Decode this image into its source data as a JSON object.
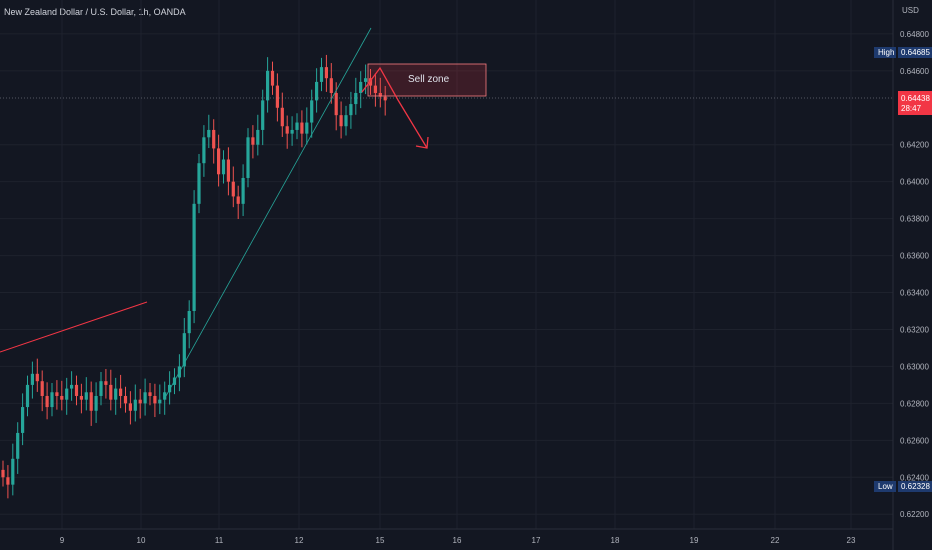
{
  "title": "New Zealand Dollar / U.S. Dollar, 1h, OANDA",
  "currency": "USD",
  "annotations": {
    "sell_zone_label": "Sell zone"
  },
  "badges": {
    "high_label": "High",
    "high_value": "0.64685",
    "low_label": "Low",
    "low_value": "0.62328",
    "current_price": "0.64438",
    "countdown": "28:47"
  },
  "colors": {
    "background": "#131722",
    "up": "#26a69a",
    "down": "#ef5350",
    "badge_blue": "#1e3a6e",
    "current_badge": "#f23645"
  },
  "chart_data": {
    "type": "candlestick",
    "title": "New Zealand Dollar / U.S. Dollar, 1h, OANDA",
    "y_ticks": [
      "0.64800",
      "0.64600",
      "0.64200",
      "0.64000",
      "0.63800",
      "0.63600",
      "0.63400",
      "0.63200",
      "0.63000",
      "0.62800",
      "0.62600",
      "0.62400",
      "0.62200"
    ],
    "x_ticks": [
      "9",
      "10",
      "11",
      "12",
      "15",
      "16",
      "17",
      "18",
      "19",
      "22",
      "23"
    ],
    "ylim": [
      0.6212,
      0.6494
    ],
    "closes": [
      0.624,
      0.6236,
      0.625,
      0.6264,
      0.6278,
      0.629,
      0.6296,
      0.6292,
      0.6284,
      0.6278,
      0.6286,
      0.6284,
      0.6282,
      0.6288,
      0.629,
      0.6284,
      0.6282,
      0.6286,
      0.6276,
      0.6284,
      0.6292,
      0.629,
      0.6282,
      0.6288,
      0.6284,
      0.628,
      0.6276,
      0.6282,
      0.628,
      0.6286,
      0.6284,
      0.628,
      0.6282,
      0.6286,
      0.629,
      0.6294,
      0.63,
      0.6318,
      0.633,
      0.6388,
      0.641,
      0.6424,
      0.6428,
      0.6418,
      0.6404,
      0.6412,
      0.64,
      0.6392,
      0.6388,
      0.6402,
      0.6424,
      0.642,
      0.6428,
      0.6444,
      0.646,
      0.6452,
      0.644,
      0.643,
      0.6426,
      0.6428,
      0.6432,
      0.6426,
      0.6432,
      0.6444,
      0.6454,
      0.6462,
      0.6456,
      0.6448,
      0.6436,
      0.643,
      0.6436,
      0.6442,
      0.6448,
      0.6454,
      0.6456,
      0.6452,
      0.6448,
      0.6446,
      0.6444
    ]
  }
}
